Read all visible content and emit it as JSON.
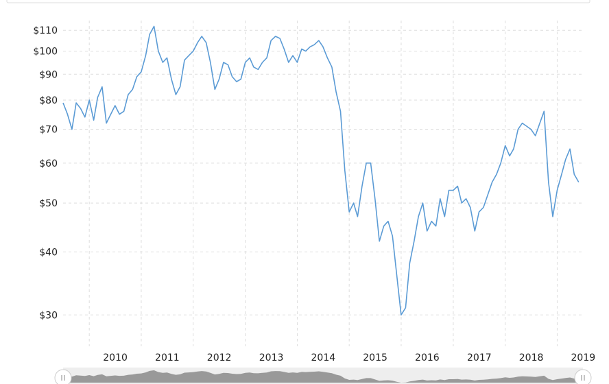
{
  "chart_data": {
    "type": "line",
    "y_scale": "log",
    "ylim": [
      26,
      115
    ],
    "xlim": [
      "2009-07-01",
      "2019-07-01"
    ],
    "grid": true,
    "colors": {
      "line": "#5b9bd5",
      "grid": "#dddddd",
      "navigator_fill": "#999999",
      "navigator_bg": "#eeeeee"
    },
    "y_ticks": [
      {
        "value": 30,
        "label": "$30"
      },
      {
        "value": 40,
        "label": "$40"
      },
      {
        "value": 50,
        "label": "$50"
      },
      {
        "value": 60,
        "label": "$60"
      },
      {
        "value": 70,
        "label": "$70"
      },
      {
        "value": 80,
        "label": "$80"
      },
      {
        "value": 90,
        "label": "$90"
      },
      {
        "value": 100,
        "label": "$100"
      },
      {
        "value": 110,
        "label": "$110"
      }
    ],
    "x_ticks": [
      {
        "value": "2010-01-01",
        "label": "2010"
      },
      {
        "value": "2011-01-01",
        "label": "2011"
      },
      {
        "value": "2012-01-01",
        "label": "2012"
      },
      {
        "value": "2013-01-01",
        "label": "2013"
      },
      {
        "value": "2014-01-01",
        "label": "2014"
      },
      {
        "value": "2015-01-01",
        "label": "2015"
      },
      {
        "value": "2016-01-01",
        "label": "2016"
      },
      {
        "value": "2017-01-01",
        "label": "2017"
      },
      {
        "value": "2018-01-01",
        "label": "2018"
      },
      {
        "value": "2019-01-01",
        "label": "2019"
      }
    ],
    "series": [
      {
        "x": [
          "2009-07-01",
          "2009-08-01",
          "2009-09-01",
          "2009-10-01",
          "2009-11-01",
          "2009-12-01",
          "2010-01-01",
          "2010-02-01",
          "2010-03-01",
          "2010-04-01",
          "2010-05-01",
          "2010-06-01",
          "2010-07-01",
          "2010-08-01",
          "2010-09-01",
          "2010-10-01",
          "2010-11-01",
          "2010-12-01",
          "2011-01-01",
          "2011-02-01",
          "2011-03-01",
          "2011-04-01",
          "2011-05-01",
          "2011-06-01",
          "2011-07-01",
          "2011-08-01",
          "2011-09-01",
          "2011-10-01",
          "2011-11-01",
          "2011-12-01",
          "2012-01-01",
          "2012-02-01",
          "2012-03-01",
          "2012-04-01",
          "2012-05-01",
          "2012-06-01",
          "2012-07-01",
          "2012-08-01",
          "2012-09-01",
          "2012-10-01",
          "2012-11-01",
          "2012-12-01",
          "2013-01-01",
          "2013-02-01",
          "2013-03-01",
          "2013-04-01",
          "2013-05-01",
          "2013-06-01",
          "2013-07-01",
          "2013-08-01",
          "2013-09-01",
          "2013-10-01",
          "2013-11-01",
          "2013-12-01",
          "2014-01-01",
          "2014-02-01",
          "2014-03-01",
          "2014-04-01",
          "2014-05-01",
          "2014-06-01",
          "2014-07-01",
          "2014-08-01",
          "2014-09-01",
          "2014-10-01",
          "2014-11-01",
          "2014-12-01",
          "2015-01-01",
          "2015-02-01",
          "2015-03-01",
          "2015-04-01",
          "2015-05-01",
          "2015-06-01",
          "2015-07-01",
          "2015-08-01",
          "2015-09-01",
          "2015-10-01",
          "2015-11-01",
          "2015-12-01",
          "2016-01-01",
          "2016-02-01",
          "2016-03-01",
          "2016-04-01",
          "2016-05-01",
          "2016-06-01",
          "2016-07-01",
          "2016-08-01",
          "2016-09-01",
          "2016-10-01",
          "2016-11-01",
          "2016-12-01",
          "2017-01-01",
          "2017-02-01",
          "2017-03-01",
          "2017-04-01",
          "2017-05-01",
          "2017-06-01",
          "2017-07-01",
          "2017-08-01",
          "2017-09-01",
          "2017-10-01",
          "2017-11-01",
          "2017-12-01",
          "2018-01-01",
          "2018-02-01",
          "2018-03-01",
          "2018-04-01",
          "2018-05-01",
          "2018-06-01",
          "2018-07-01",
          "2018-08-01",
          "2018-09-01",
          "2018-10-01",
          "2018-11-01",
          "2018-12-01",
          "2019-01-01",
          "2019-02-01",
          "2019-03-01",
          "2019-04-01",
          "2019-05-01",
          "2019-06-01"
        ],
        "values": [
          79,
          75,
          70,
          79,
          77,
          74,
          80,
          73,
          81,
          85,
          72,
          75,
          78,
          75,
          76,
          82,
          84,
          89,
          91,
          98,
          108,
          112,
          100,
          95,
          97,
          88,
          82,
          85,
          96,
          98,
          100,
          104,
          107,
          104,
          95,
          84,
          88,
          95,
          94,
          89,
          87,
          88,
          95,
          97,
          93,
          92,
          95,
          97,
          105,
          107,
          106,
          101,
          95,
          98,
          95,
          101,
          100,
          102,
          103,
          105,
          102,
          97,
          93,
          83,
          76,
          58,
          48,
          50,
          47,
          54,
          60,
          60,
          51,
          42,
          45,
          46,
          43,
          36,
          30,
          31,
          38,
          42,
          47,
          50,
          44,
          46,
          45,
          51,
          47,
          53,
          53,
          54,
          50,
          51,
          49,
          44,
          48,
          49,
          52,
          55,
          57,
          60,
          65,
          62,
          64,
          70,
          72,
          71,
          70,
          68,
          72,
          76,
          55,
          47,
          53,
          57,
          61,
          64,
          57,
          55
        ]
      }
    ]
  }
}
